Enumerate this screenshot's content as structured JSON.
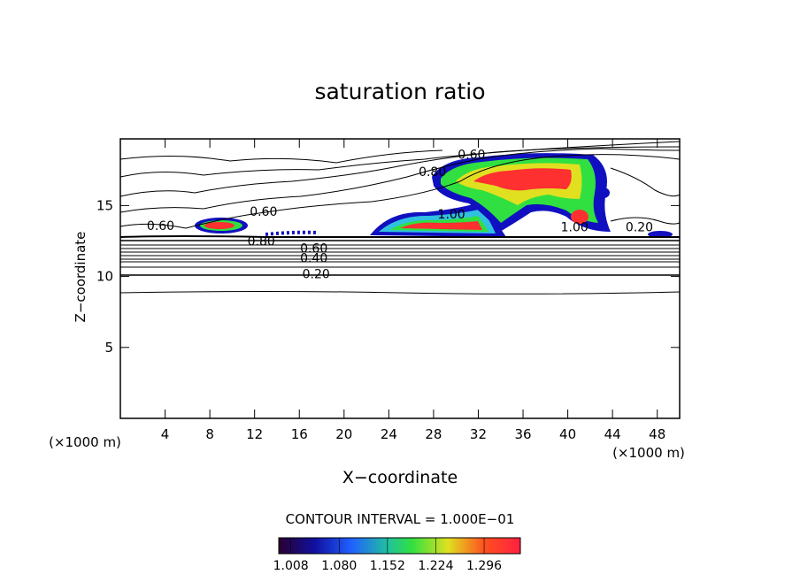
{
  "chart_data": {
    "type": "contour",
    "title": "saturation ratio",
    "x_label": "X−coordinate",
    "y_label": "Z−coordinate",
    "x_unit": "(×1000 m)",
    "xlim": [
      0,
      50
    ],
    "ylim": [
      0,
      19.7
    ],
    "xticks": [
      4,
      8,
      12,
      16,
      20,
      24,
      28,
      32,
      36,
      40,
      44,
      48
    ],
    "yticks": [
      5,
      10,
      15
    ],
    "contour_labels": [
      {
        "text": "0.20",
        "x": 17.5,
        "y": 10.2
      },
      {
        "text": "0.40",
        "x": 17.3,
        "y": 11.3
      },
      {
        "text": "0.60",
        "x": 17.3,
        "y": 12.0
      },
      {
        "text": "0.80",
        "x": 12.6,
        "y": 12.5
      },
      {
        "text": "0.60",
        "x": 3.6,
        "y": 13.6
      },
      {
        "text": "0.60",
        "x": 12.8,
        "y": 14.6
      },
      {
        "text": "0.80",
        "x": 27.9,
        "y": 17.4
      },
      {
        "text": "0.60",
        "x": 31.4,
        "y": 18.6
      },
      {
        "text": "1.00",
        "x": 29.6,
        "y": 14.4
      },
      {
        "text": "1.00",
        "x": 40.6,
        "y": 13.5
      },
      {
        "text": "0.20",
        "x": 46.4,
        "y": 13.5
      }
    ],
    "contour_interval": "CONTOUR INTERVAL = 1.000E−01",
    "colorbar": {
      "lim": [
        0.99,
        1.35
      ],
      "ticks": [
        {
          "value": 1.008,
          "label": "1.008"
        },
        {
          "value": 1.08,
          "label": "1.080"
        },
        {
          "value": 1.152,
          "label": "1.152"
        },
        {
          "value": 1.224,
          "label": "1.224"
        },
        {
          "value": 1.296,
          "label": "1.296"
        }
      ]
    }
  }
}
